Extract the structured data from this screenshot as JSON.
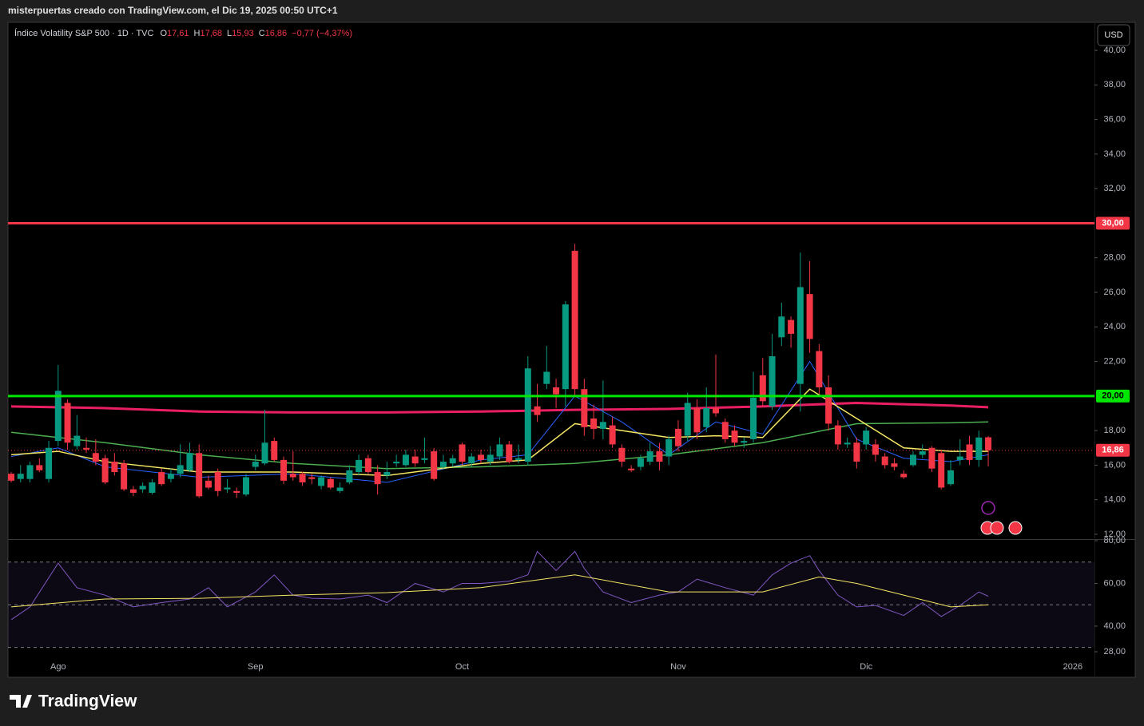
{
  "header": {
    "caption": "misterpuertas creado con TradingView.com, el Dic 19, 2025 00:50 UTC+1",
    "currency": "USD",
    "branding": "TradingView"
  },
  "chart_data": [
    {
      "type": "candlestick",
      "title": "Índice Volatility S&P 500 · 1D · TVC",
      "legend_values": [
        {
          "label": "O",
          "value": "17,61"
        },
        {
          "label": "H",
          "value": "17,68"
        },
        {
          "label": "L",
          "value": "15,93"
        },
        {
          "label": "C",
          "value": "16,86"
        }
      ],
      "change": "−0,77 (−4,37%)",
      "colors": {
        "up": "#089981",
        "down": "#f23645"
      },
      "categories": [
        null,
        null,
        null,
        null,
        null,
        "Ago",
        null,
        null,
        null,
        null,
        null,
        null,
        null,
        null,
        null,
        null,
        null,
        null,
        null,
        null,
        null,
        null,
        null,
        null,
        null,
        null,
        "Sep",
        null,
        null,
        null,
        null,
        null,
        null,
        null,
        null,
        null,
        null,
        null,
        null,
        null,
        null,
        null,
        null,
        null,
        null,
        null,
        null,
        null,
        "Oct",
        null,
        null,
        null,
        null,
        null,
        null,
        null,
        null,
        null,
        null,
        null,
        null,
        null,
        null,
        null,
        null,
        null,
        null,
        null,
        null,
        null,
        null,
        "Nov",
        null,
        null,
        null,
        null,
        null,
        null,
        null,
        null,
        null,
        null,
        null,
        null,
        null,
        null,
        null,
        null,
        null,
        null,
        null,
        "Dic",
        null,
        null,
        null,
        null,
        null,
        null,
        null,
        null,
        null,
        null,
        null,
        null,
        null,
        null,
        null,
        null,
        null,
        null,
        null,
        null,
        null,
        "2026"
      ],
      "open": [
        15.5,
        15.2,
        15.2,
        16.0,
        15.2,
        17.4,
        19.6,
        17.1,
        17.0,
        16.7,
        16.4,
        16.2,
        16.1,
        14.6,
        14.6,
        14.4,
        15.6,
        15.2,
        15.5,
        15.7,
        16.7,
        15.1,
        15.6,
        14.6,
        14.5,
        14.3,
        15.9,
        16.1,
        17.4,
        16.3,
        15.5,
        15.5,
        15.3,
        14.8,
        15.2,
        14.5,
        15.0,
        15.6,
        16.4,
        15.6,
        15.4,
        16.1,
        16.0,
        16.5,
        16.3,
        16.8,
        15.9,
        16.1,
        17.2,
        16.1,
        16.6,
        16.2,
        16.5,
        17.2,
        16.3,
        16.2,
        19.4,
        20.7,
        20.5,
        20.4,
        28.4,
        20.4,
        18.7,
        18.1,
        18.3,
        17.0,
        15.8,
        15.9,
        16.2,
        16.8,
        16.5,
        18.1,
        17.7,
        19.3,
        18.2,
        19.3,
        18.5,
        18.0,
        17.3,
        17.5,
        21.2,
        19.4,
        23.4,
        24.4,
        20.7,
        25.9,
        22.6,
        20.5,
        18.3,
        17.2,
        17.3,
        17.2,
        17.2,
        16.5,
        16.1,
        15.5,
        16.0,
        16.6,
        17.0,
        16.7,
        14.9,
        16.3,
        17.2,
        16.3,
        17.61,
        null,
        null,
        null,
        null,
        null,
        null,
        null,
        null,
        null
      ],
      "high": [
        15.6,
        16.0,
        16.2,
        16.4,
        17.4,
        21.8,
        19.8,
        18.9,
        17.6,
        17.5,
        16.6,
        16.7,
        16.3,
        14.8,
        15.0,
        15.2,
        15.8,
        15.8,
        17.2,
        17.3,
        17.2,
        15.4,
        15.8,
        15.2,
        14.7,
        15.5,
        16.6,
        19.2,
        17.6,
        16.5,
        16.8,
        15.6,
        15.5,
        15.4,
        15.3,
        15.0,
        16.0,
        16.6,
        16.6,
        16.0,
        16.2,
        16.6,
        16.9,
        16.9,
        17.6,
        17.0,
        16.6,
        16.6,
        17.3,
        16.7,
        16.9,
        17.1,
        17.6,
        17.4,
        17.2,
        22.3,
        20.7,
        22.9,
        21.0,
        25.5,
        28.8,
        21.0,
        19.5,
        20.9,
        18.8,
        17.2,
        16.0,
        16.6,
        17.3,
        17.3,
        17.7,
        18.6,
        20.2,
        19.8,
        20.5,
        22.4,
        18.7,
        18.3,
        17.6,
        21.4,
        22.2,
        23.6,
        25.4,
        24.6,
        28.3,
        27.8,
        23.0,
        21.2,
        18.6,
        17.6,
        17.6,
        18.2,
        17.5,
        16.7,
        16.4,
        15.7,
        16.8,
        17.2,
        17.1,
        16.9,
        16.3,
        17.5,
        17.7,
        18.0,
        17.68,
        null,
        null,
        null,
        null,
        null,
        null,
        null,
        null,
        null
      ],
      "low": [
        15.0,
        15.0,
        15.0,
        15.6,
        15.0,
        17.1,
        16.9,
        16.9,
        16.7,
        16.0,
        14.9,
        15.4,
        14.5,
        14.2,
        14.4,
        14.3,
        14.8,
        15.0,
        15.3,
        15.6,
        14.1,
        14.6,
        14.2,
        14.4,
        14.1,
        14.2,
        15.7,
        16.0,
        16.2,
        14.9,
        15.1,
        14.8,
        14.9,
        14.6,
        14.6,
        14.4,
        14.9,
        15.4,
        15.5,
        14.3,
        15.2,
        15.9,
        15.9,
        15.9,
        16.1,
        15.1,
        15.8,
        15.9,
        16.0,
        15.9,
        16.1,
        16.0,
        16.3,
        16.1,
        16.1,
        16.0,
        18.5,
        20.4,
        19.3,
        19.4,
        20.0,
        17.7,
        17.5,
        17.5,
        17.0,
        15.9,
        15.6,
        15.7,
        16.0,
        15.7,
        16.0,
        16.8,
        17.4,
        17.5,
        17.9,
        18.8,
        17.3,
        17.1,
        17.0,
        17.3,
        19.4,
        19.2,
        22.9,
        22.8,
        19.1,
        22.5,
        20.1,
        18.0,
        16.9,
        17.0,
        15.8,
        16.9,
        16.2,
        15.8,
        15.7,
        15.2,
        15.9,
        16.4,
        15.6,
        14.6,
        14.8,
        16.0,
        16.0,
        15.9,
        15.93,
        null,
        null,
        null,
        null,
        null,
        null,
        null,
        null,
        null
      ],
      "close": [
        15.1,
        15.5,
        16.0,
        15.7,
        17.0,
        20.3,
        17.3,
        17.7,
        16.9,
        16.2,
        15.0,
        15.6,
        14.6,
        14.4,
        14.8,
        15.0,
        14.9,
        15.5,
        16.0,
        16.7,
        14.2,
        14.7,
        14.5,
        14.7,
        14.4,
        15.3,
        16.2,
        17.3,
        16.3,
        15.1,
        15.3,
        15.0,
        15.2,
        15.3,
        14.7,
        14.7,
        15.7,
        16.3,
        15.6,
        14.9,
        15.6,
        16.2,
        16.6,
        16.1,
        16.4,
        15.2,
        16.2,
        16.4,
        16.2,
        16.5,
        16.3,
        16.6,
        17.2,
        16.2,
        16.4,
        21.6,
        18.9,
        21.4,
        20.1,
        25.3,
        20.4,
        18.2,
        18.1,
        18.5,
        17.2,
        16.2,
        15.7,
        16.4,
        16.8,
        16.2,
        17.5,
        17.1,
        19.6,
        17.9,
        19.3,
        19.0,
        17.5,
        17.3,
        17.4,
        19.9,
        19.7,
        22.3,
        24.6,
        23.6,
        26.3,
        23.3,
        20.5,
        18.4,
        17.2,
        17.3,
        16.2,
        18.0,
        16.6,
        16.0,
        15.9,
        15.3,
        16.6,
        16.8,
        15.8,
        14.7,
        15.7,
        16.5,
        16.3,
        17.6,
        16.86,
        null,
        null,
        null,
        null,
        null,
        null,
        null,
        null,
        null
      ],
      "overlays": [
        {
          "color": "#e91e63",
          "width": 3,
          "x": [
            0,
            10,
            20,
            30,
            40,
            50,
            60,
            70,
            80,
            90,
            100,
            104
          ],
          "values": [
            19.4,
            19.3,
            19.1,
            19.05,
            19.05,
            19.1,
            19.2,
            19.25,
            19.4,
            19.6,
            19.45,
            19.35
          ]
        },
        {
          "color": "#4caf50",
          "width": 1.5,
          "x": [
            0,
            10,
            20,
            30,
            40,
            50,
            60,
            70,
            80,
            90,
            100,
            104
          ],
          "values": [
            17.9,
            17.3,
            16.6,
            16.1,
            15.8,
            15.9,
            16.1,
            16.6,
            17.3,
            18.4,
            18.45,
            18.5
          ]
        },
        {
          "color": "#2962ff",
          "width": 1,
          "x": [
            0,
            5,
            10,
            20,
            30,
            40,
            50,
            55,
            60,
            65,
            70,
            75,
            80,
            85,
            90,
            95,
            100,
            104
          ],
          "values": [
            16.5,
            17.0,
            15.9,
            15.3,
            15.5,
            15.0,
            16.3,
            16.6,
            20.0,
            18.5,
            16.6,
            18.5,
            17.8,
            22.0,
            17.5,
            16.4,
            16.2,
            16.6
          ]
        },
        {
          "color": "#f5e663",
          "width": 1.5,
          "x": [
            0,
            5,
            10,
            20,
            30,
            40,
            50,
            55,
            60,
            65,
            70,
            75,
            80,
            85,
            90,
            95,
            100,
            104
          ],
          "values": [
            16.6,
            16.8,
            16.2,
            15.6,
            15.6,
            15.4,
            16.1,
            16.3,
            18.4,
            18.0,
            17.6,
            17.7,
            17.6,
            20.4,
            18.7,
            17.0,
            16.8,
            16.8
          ]
        }
      ],
      "hlines": [
        {
          "value": 30,
          "label": "30,00",
          "color": "#f23645"
        },
        {
          "value": 20,
          "label": "20,00",
          "color": "#00e600"
        }
      ],
      "last_price": {
        "value": 16.86,
        "label": "16,86",
        "color": "#f23645"
      },
      "ylim": [
        11.72,
        41.62
      ],
      "yticks": [
        {
          "value": 40,
          "label": "40,00"
        },
        {
          "value": 38,
          "label": "38,00"
        },
        {
          "value": 36,
          "label": "36,00"
        },
        {
          "value": 34,
          "label": "34,00"
        },
        {
          "value": 32,
          "label": "32,00"
        },
        {
          "value": 28,
          "label": "28,00"
        },
        {
          "value": 26,
          "label": "26,00"
        },
        {
          "value": 24,
          "label": "24,00"
        },
        {
          "value": 22,
          "label": "22,00"
        },
        {
          "value": 18,
          "label": "18,00"
        },
        {
          "value": 16,
          "label": "16,00"
        },
        {
          "value": 14,
          "label": "14,00"
        },
        {
          "value": 12,
          "label": "12,00"
        }
      ]
    },
    {
      "type": "line",
      "ylim": [
        28,
        80
      ],
      "yticks": [
        {
          "value": 80,
          "label": "80,00"
        },
        {
          "value": 60,
          "label": "60,00"
        },
        {
          "value": 40,
          "label": "40,00"
        },
        {
          "value": 28,
          "label": "28,00"
        }
      ],
      "levels": [
        70,
        50,
        30
      ],
      "series": [
        {
          "color": "#7e57c2",
          "x": [
            0,
            2,
            5,
            7,
            10,
            13,
            16,
            19,
            21,
            23,
            26,
            28,
            30,
            32,
            35,
            38,
            40,
            43,
            46,
            48,
            50,
            53,
            55,
            56,
            58,
            60,
            61,
            63,
            66,
            69,
            71,
            73,
            76,
            79,
            81,
            83,
            85,
            86,
            88,
            90,
            92,
            95,
            97,
            99,
            101,
            103,
            104
          ],
          "values": [
            43,
            49,
            69.5,
            58,
            54.5,
            49,
            51,
            52.7,
            58,
            49,
            56,
            64,
            54.5,
            53,
            52.7,
            54.5,
            51,
            60,
            56,
            60,
            60,
            61,
            64,
            75,
            66,
            75,
            67,
            56,
            51,
            54.5,
            56,
            62,
            58,
            54.5,
            64,
            69.5,
            73,
            66,
            54.5,
            49,
            49.7,
            45,
            51,
            44.5,
            49.7,
            56,
            54
          ]
        },
        {
          "color": "#f5e663",
          "x": [
            0,
            10,
            20,
            30,
            40,
            50,
            60,
            70,
            80,
            86,
            90,
            95,
            100,
            104
          ],
          "values": [
            49,
            52.7,
            53,
            54.5,
            55.7,
            58,
            64,
            56,
            56,
            63,
            60,
            54.5,
            49,
            50
          ]
        }
      ]
    }
  ]
}
